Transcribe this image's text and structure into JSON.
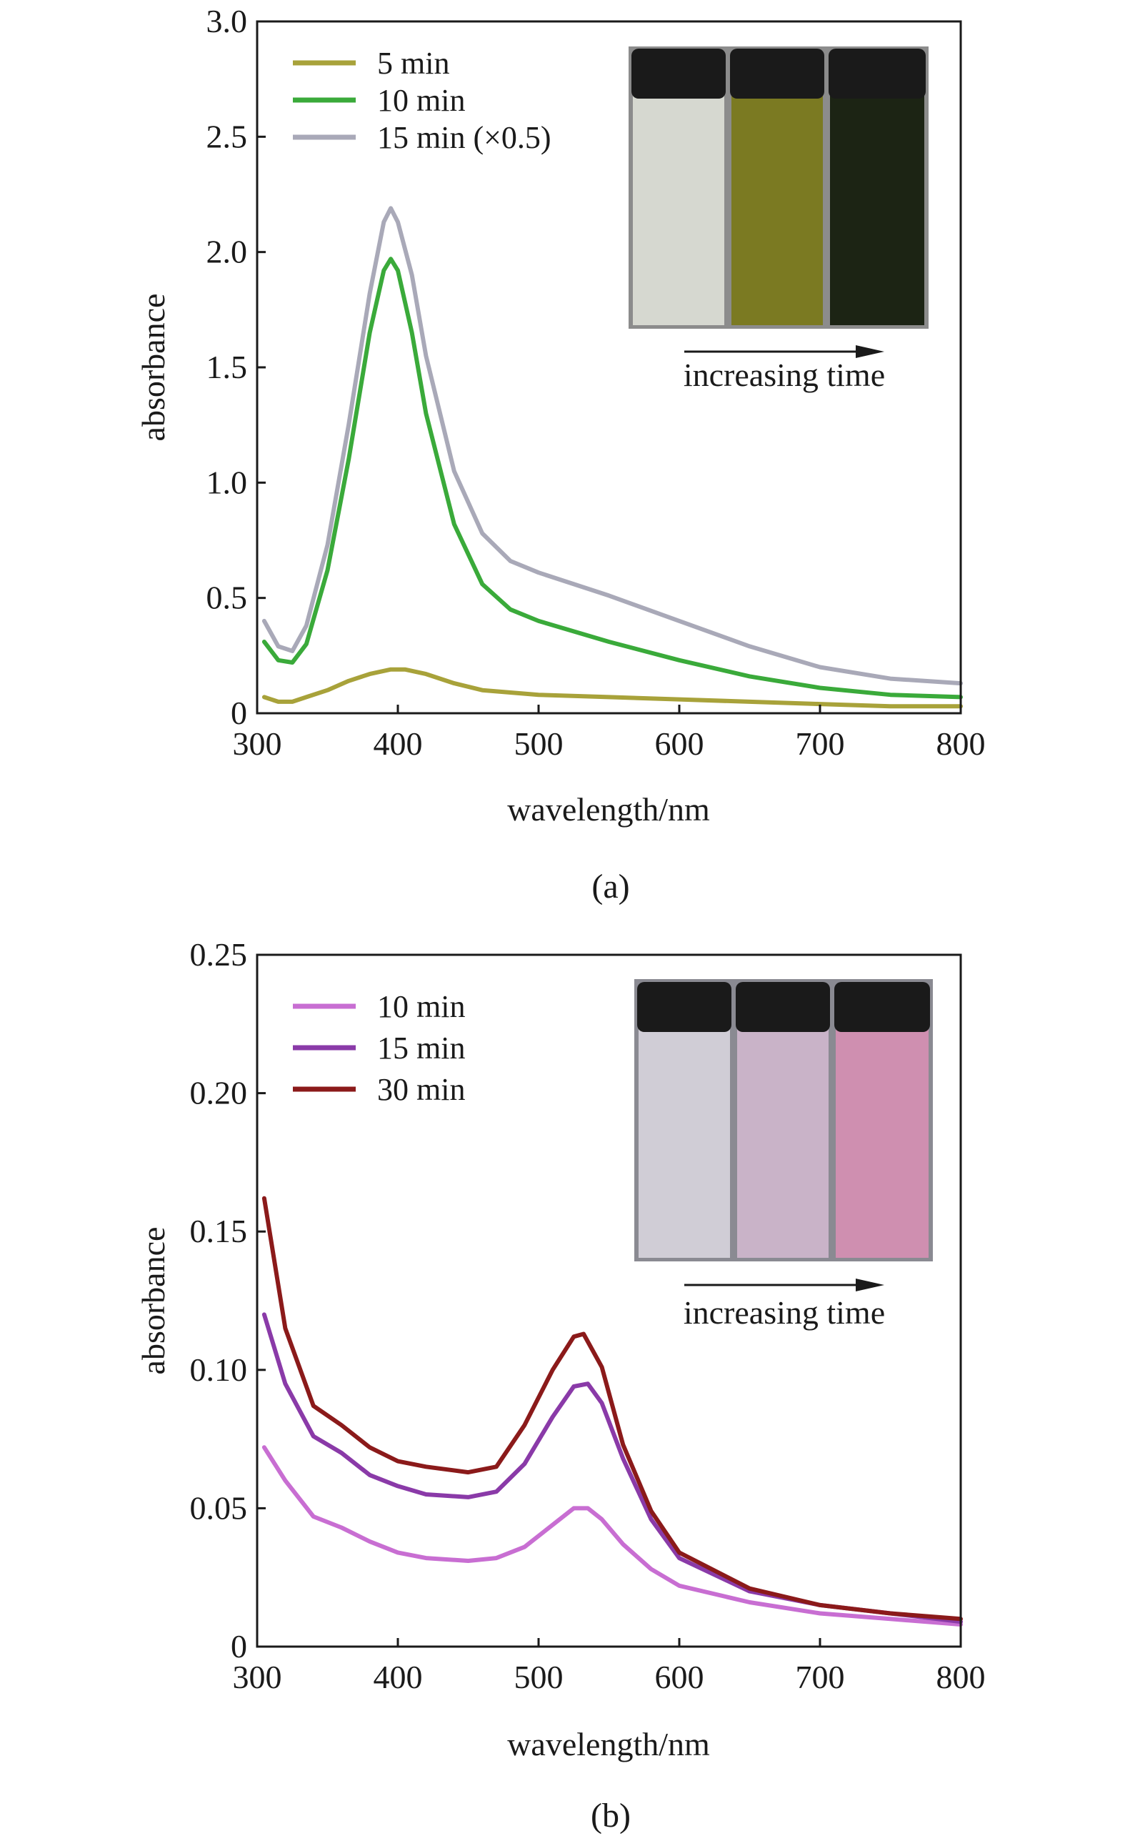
{
  "chart_data": [
    {
      "type": "line",
      "panel_label": "(a)",
      "xlabel": "wavelength/nm",
      "ylabel": "absorbance",
      "xlim": [
        300,
        800
      ],
      "ylim": [
        0,
        3.0
      ],
      "xticks": [
        "300",
        "400",
        "500",
        "600",
        "700",
        "800"
      ],
      "yticks": [
        "0",
        "0.5",
        "1.0",
        "1.5",
        "2.0",
        "2.5",
        "3.0"
      ],
      "legend_position": "top-left",
      "series": [
        {
          "name": "5 min",
          "color": "#a8a23a",
          "x": [
            305,
            315,
            325,
            335,
            350,
            365,
            380,
            395,
            405,
            420,
            440,
            460,
            480,
            500,
            550,
            600,
            650,
            700,
            750,
            800
          ],
          "y": [
            0.07,
            0.05,
            0.05,
            0.07,
            0.1,
            0.14,
            0.17,
            0.19,
            0.19,
            0.17,
            0.13,
            0.1,
            0.09,
            0.08,
            0.07,
            0.06,
            0.05,
            0.04,
            0.03,
            0.03
          ]
        },
        {
          "name": "10 min",
          "color": "#3aaa3a",
          "x": [
            305,
            315,
            325,
            335,
            350,
            365,
            380,
            390,
            395,
            400,
            410,
            420,
            440,
            460,
            480,
            500,
            550,
            600,
            650,
            700,
            750,
            800
          ],
          "y": [
            0.31,
            0.23,
            0.22,
            0.3,
            0.62,
            1.1,
            1.65,
            1.92,
            1.97,
            1.92,
            1.65,
            1.3,
            0.82,
            0.56,
            0.45,
            0.4,
            0.31,
            0.23,
            0.16,
            0.11,
            0.08,
            0.07
          ]
        },
        {
          "name": "15 min (×0.5)",
          "color": "#a9a9b8",
          "x": [
            305,
            315,
            325,
            335,
            350,
            365,
            380,
            390,
            395,
            400,
            410,
            420,
            440,
            460,
            480,
            500,
            550,
            600,
            650,
            700,
            750,
            800
          ],
          "y": [
            0.4,
            0.29,
            0.27,
            0.38,
            0.73,
            1.25,
            1.82,
            2.13,
            2.19,
            2.13,
            1.9,
            1.55,
            1.05,
            0.78,
            0.66,
            0.61,
            0.51,
            0.4,
            0.29,
            0.2,
            0.15,
            0.13
          ]
        }
      ],
      "inset": {
        "caption": "increasing time",
        "vial_colors": [
          "#d6d8d0",
          "#7b7a22",
          "#1c2414"
        ],
        "cap_color": "#1a1a1a"
      }
    },
    {
      "type": "line",
      "panel_label": "(b)",
      "xlabel": "wavelength/nm",
      "ylabel": "absorbance",
      "xlim": [
        300,
        800
      ],
      "ylim": [
        0,
        0.25
      ],
      "xticks": [
        "300",
        "400",
        "500",
        "600",
        "700",
        "800"
      ],
      "yticks": [
        "0",
        "0.05",
        "0.10",
        "0.15",
        "0.20",
        "0.25"
      ],
      "legend_position": "top-left",
      "series": [
        {
          "name": "10 min",
          "color": "#c86ed2",
          "x": [
            305,
            320,
            340,
            360,
            380,
            400,
            420,
            450,
            470,
            490,
            510,
            525,
            535,
            545,
            560,
            580,
            600,
            650,
            700,
            750,
            800
          ],
          "y": [
            0.072,
            0.06,
            0.047,
            0.043,
            0.038,
            0.034,
            0.032,
            0.031,
            0.032,
            0.036,
            0.044,
            0.05,
            0.05,
            0.046,
            0.037,
            0.028,
            0.022,
            0.016,
            0.012,
            0.01,
            0.008
          ]
        },
        {
          "name": "15 min",
          "color": "#8a3aa8",
          "x": [
            305,
            320,
            340,
            360,
            380,
            400,
            420,
            450,
            470,
            490,
            510,
            525,
            535,
            545,
            560,
            580,
            600,
            650,
            700,
            750,
            800
          ],
          "y": [
            0.12,
            0.095,
            0.076,
            0.07,
            0.062,
            0.058,
            0.055,
            0.054,
            0.056,
            0.066,
            0.083,
            0.094,
            0.095,
            0.088,
            0.068,
            0.046,
            0.032,
            0.02,
            0.015,
            0.012,
            0.009
          ]
        },
        {
          "name": "30 min",
          "color": "#8b1a1a",
          "x": [
            305,
            320,
            340,
            360,
            380,
            400,
            420,
            450,
            470,
            490,
            510,
            525,
            532,
            545,
            560,
            580,
            600,
            650,
            700,
            750,
            800
          ],
          "y": [
            0.162,
            0.115,
            0.087,
            0.08,
            0.072,
            0.067,
            0.065,
            0.063,
            0.065,
            0.08,
            0.1,
            0.112,
            0.113,
            0.101,
            0.073,
            0.049,
            0.034,
            0.021,
            0.015,
            0.012,
            0.01
          ]
        }
      ],
      "inset": {
        "caption": "increasing time",
        "vial_colors": [
          "#d0cdd6",
          "#c9b3c8",
          "#cf8fb0"
        ],
        "cap_color": "#1a1a1a"
      }
    }
  ]
}
